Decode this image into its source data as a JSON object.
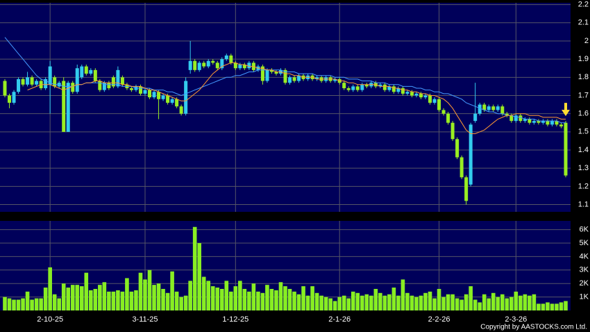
{
  "chart_data": {
    "type": "candlestick",
    "categories": [
      null,
      null,
      null,
      null,
      null,
      null,
      null,
      null,
      null,
      null,
      "2-10-25",
      null,
      null,
      null,
      null,
      null,
      null,
      null,
      null,
      null,
      null,
      null,
      null,
      null,
      null,
      null,
      null,
      null,
      null,
      null,
      null,
      "3-11-25",
      null,
      null,
      null,
      null,
      null,
      null,
      null,
      null,
      null,
      null,
      null,
      null,
      null,
      null,
      null,
      null,
      null,
      null,
      null,
      "1-12-25",
      null,
      null,
      null,
      null,
      null,
      null,
      null,
      null,
      null,
      null,
      null,
      null,
      null,
      null,
      null,
      null,
      null,
      null,
      null,
      null,
      null,
      null,
      "2-1-26",
      null,
      null,
      null,
      null,
      null,
      null,
      null,
      null,
      null,
      null,
      null,
      null,
      null,
      null,
      null,
      null,
      null,
      null,
      null,
      null,
      null,
      "2-2-26",
      null,
      null,
      null,
      null,
      null,
      null,
      null,
      null,
      null,
      null,
      null,
      null,
      null,
      null,
      null,
      null,
      "2-3-26",
      null,
      null,
      null,
      null,
      null,
      null,
      null,
      null,
      null,
      null,
      null
    ],
    "open": [
      1.78,
      1.7,
      1.66,
      1.72,
      1.79,
      1.76,
      1.8,
      1.76,
      1.78,
      1.74,
      1.76,
      1.8,
      1.75,
      1.78,
      1.5,
      1.77,
      1.72,
      1.8,
      1.86,
      1.82,
      1.84,
      1.78,
      1.73,
      1.77,
      1.8,
      1.75,
      1.8,
      1.76,
      1.74,
      1.73,
      1.75,
      1.71,
      1.73,
      1.69,
      1.72,
      1.68,
      1.7,
      1.66,
      1.68,
      1.64,
      1.6,
      1.84,
      1.89,
      1.84,
      1.88,
      1.86,
      1.89,
      1.88,
      1.85,
      1.9,
      1.92,
      1.88,
      1.85,
      1.87,
      1.85,
      1.88,
      1.84,
      1.86,
      1.78,
      1.84,
      1.83,
      1.82,
      1.84,
      1.77,
      1.8,
      1.78,
      1.81,
      1.79,
      1.81,
      1.79,
      1.8,
      1.78,
      1.8,
      1.78,
      1.79,
      1.77,
      1.74,
      1.73,
      1.75,
      1.73,
      1.76,
      1.75,
      1.77,
      1.75,
      1.76,
      1.73,
      1.75,
      1.72,
      1.74,
      1.71,
      1.72,
      1.7,
      1.71,
      1.69,
      1.7,
      1.66,
      1.68,
      1.62,
      1.6,
      1.55,
      1.46,
      1.36,
      1.25,
      1.21,
      1.56,
      1.6,
      1.65,
      1.62,
      1.64,
      1.62,
      1.64,
      1.6,
      1.59,
      1.56,
      1.59,
      1.56,
      1.57,
      1.55,
      1.56,
      1.55,
      1.56,
      1.54,
      1.56,
      1.54,
      1.55
    ],
    "high": [
      1.79,
      1.71,
      1.73,
      1.8,
      1.8,
      1.83,
      1.81,
      1.79,
      1.79,
      1.8,
      1.89,
      1.81,
      1.78,
      1.8,
      1.78,
      1.78,
      1.87,
      1.87,
      1.87,
      1.85,
      1.85,
      1.79,
      1.78,
      1.78,
      1.81,
      1.86,
      1.81,
      1.77,
      1.75,
      1.76,
      1.76,
      1.74,
      1.74,
      1.73,
      1.73,
      1.71,
      1.71,
      1.69,
      1.69,
      1.65,
      1.8,
      2.0,
      1.9,
      1.89,
      1.89,
      1.9,
      1.9,
      1.89,
      1.91,
      1.93,
      1.93,
      1.89,
      1.88,
      1.88,
      1.89,
      1.89,
      1.87,
      1.87,
      1.85,
      1.85,
      1.84,
      1.85,
      1.85,
      1.81,
      1.81,
      1.82,
      1.82,
      1.82,
      1.82,
      1.81,
      1.81,
      1.81,
      1.81,
      1.8,
      1.8,
      1.78,
      1.75,
      1.76,
      1.76,
      1.77,
      1.77,
      1.78,
      1.78,
      1.77,
      1.77,
      1.76,
      1.76,
      1.75,
      1.75,
      1.73,
      1.73,
      1.72,
      1.72,
      1.71,
      1.71,
      1.69,
      1.69,
      1.63,
      1.61,
      1.56,
      1.47,
      1.37,
      1.26,
      1.55,
      1.77,
      1.66,
      1.66,
      1.65,
      1.65,
      1.65,
      1.65,
      1.61,
      1.6,
      1.6,
      1.6,
      1.58,
      1.58,
      1.57,
      1.57,
      1.57,
      1.57,
      1.57,
      1.57,
      1.55,
      1.56
    ],
    "low": [
      1.69,
      1.63,
      1.65,
      1.71,
      1.75,
      1.75,
      1.75,
      1.75,
      1.73,
      1.73,
      1.6,
      1.74,
      1.74,
      1.5,
      1.5,
      1.71,
      1.71,
      1.79,
      1.81,
      1.81,
      1.77,
      1.72,
      1.72,
      1.73,
      1.74,
      1.74,
      1.75,
      1.73,
      1.72,
      1.72,
      1.7,
      1.7,
      1.68,
      1.68,
      1.57,
      1.67,
      1.65,
      1.65,
      1.63,
      1.59,
      1.59,
      1.82,
      1.83,
      1.83,
      1.85,
      1.85,
      1.87,
      1.84,
      1.84,
      1.89,
      1.87,
      1.84,
      1.84,
      1.84,
      1.84,
      1.83,
      1.83,
      1.76,
      1.77,
      1.82,
      1.81,
      1.81,
      1.76,
      1.76,
      1.77,
      1.77,
      1.78,
      1.78,
      1.78,
      1.78,
      1.77,
      1.77,
      1.77,
      1.77,
      1.76,
      1.73,
      1.72,
      1.72,
      1.72,
      1.72,
      1.74,
      1.74,
      1.74,
      1.74,
      1.72,
      1.72,
      1.71,
      1.71,
      1.7,
      1.7,
      1.69,
      1.69,
      1.68,
      1.68,
      1.65,
      1.65,
      1.61,
      1.59,
      1.54,
      1.45,
      1.35,
      1.24,
      1.1,
      1.2,
      1.55,
      1.59,
      1.61,
      1.61,
      1.61,
      1.61,
      1.59,
      1.58,
      1.55,
      1.55,
      1.55,
      1.55,
      1.54,
      1.54,
      1.54,
      1.54,
      1.53,
      1.53,
      1.53,
      1.52,
      1.25
    ],
    "close": [
      1.7,
      1.66,
      1.72,
      1.79,
      1.76,
      1.8,
      1.76,
      1.78,
      1.74,
      1.79,
      1.86,
      1.75,
      1.77,
      1.5,
      1.77,
      1.72,
      1.85,
      1.86,
      1.82,
      1.84,
      1.78,
      1.73,
      1.77,
      1.74,
      1.75,
      1.84,
      1.76,
      1.74,
      1.73,
      1.75,
      1.71,
      1.73,
      1.69,
      1.72,
      1.68,
      1.7,
      1.66,
      1.68,
      1.64,
      1.6,
      1.78,
      1.89,
      1.84,
      1.88,
      1.86,
      1.89,
      1.88,
      1.85,
      1.9,
      1.92,
      1.88,
      1.85,
      1.87,
      1.85,
      1.88,
      1.84,
      1.86,
      1.78,
      1.84,
      1.83,
      1.82,
      1.84,
      1.77,
      1.8,
      1.78,
      1.81,
      1.79,
      1.81,
      1.79,
      1.8,
      1.78,
      1.8,
      1.78,
      1.79,
      1.77,
      1.74,
      1.73,
      1.75,
      1.73,
      1.76,
      1.75,
      1.77,
      1.75,
      1.76,
      1.73,
      1.75,
      1.72,
      1.74,
      1.71,
      1.72,
      1.7,
      1.71,
      1.69,
      1.7,
      1.66,
      1.68,
      1.62,
      1.6,
      1.55,
      1.46,
      1.36,
      1.25,
      1.12,
      1.54,
      1.6,
      1.65,
      1.62,
      1.64,
      1.62,
      1.64,
      1.6,
      1.59,
      1.56,
      1.59,
      1.56,
      1.57,
      1.55,
      1.56,
      1.55,
      1.56,
      1.54,
      1.56,
      1.54,
      1.53,
      1.26
    ],
    "up_color": "#33ccee",
    "down_color": "#99ee22",
    "series": [
      {
        "color": "#4499ff",
        "values": [
          2.02,
          1.99,
          1.96,
          1.93,
          1.9,
          1.87,
          1.84,
          1.81,
          1.79,
          1.78,
          1.77,
          1.76,
          1.76,
          1.75,
          1.75,
          1.75,
          1.76,
          1.76,
          1.77,
          1.77,
          1.77,
          1.77,
          1.76,
          1.76,
          1.76,
          1.76,
          1.75,
          1.75,
          1.75,
          1.74,
          1.74,
          1.74,
          1.74,
          1.73,
          1.73,
          1.73,
          1.72,
          1.72,
          1.71,
          1.7,
          1.71,
          1.72,
          1.73,
          1.74,
          1.75,
          1.76,
          1.77,
          1.78,
          1.79,
          1.8,
          1.8,
          1.81,
          1.81,
          1.82,
          1.83,
          1.83,
          1.84,
          1.84,
          1.84,
          1.84,
          1.84,
          1.84,
          1.83,
          1.83,
          1.83,
          1.82,
          1.82,
          1.82,
          1.82,
          1.81,
          1.81,
          1.81,
          1.81,
          1.8,
          1.8,
          1.8,
          1.79,
          1.79,
          1.79,
          1.78,
          1.78,
          1.78,
          1.77,
          1.77,
          1.77,
          1.76,
          1.76,
          1.76,
          1.75,
          1.75,
          1.75,
          1.74,
          1.74,
          1.73,
          1.73,
          1.72,
          1.72,
          1.71,
          1.71,
          1.7,
          1.69,
          1.68,
          1.66,
          1.65,
          1.64,
          1.63,
          1.62,
          1.61,
          1.61,
          1.6,
          1.6,
          1.59,
          1.59,
          1.58,
          1.58,
          1.57,
          1.57,
          1.57,
          1.56,
          1.56,
          1.56,
          1.56,
          1.56,
          1.55,
          1.55
        ]
      },
      {
        "color": "#ff9933",
        "values": [
          null,
          null,
          null,
          null,
          null,
          1.73,
          1.74,
          1.75,
          1.76,
          1.76,
          1.76,
          1.75,
          1.74,
          1.73,
          1.74,
          1.75,
          1.76,
          1.76,
          1.77,
          1.77,
          1.78,
          1.78,
          1.77,
          1.77,
          1.77,
          1.77,
          1.76,
          1.76,
          1.75,
          1.75,
          1.75,
          1.74,
          1.73,
          1.73,
          1.72,
          1.71,
          1.7,
          1.69,
          1.68,
          1.67,
          1.67,
          1.69,
          1.71,
          1.73,
          1.76,
          1.79,
          1.82,
          1.84,
          1.86,
          1.87,
          1.88,
          1.88,
          1.87,
          1.87,
          1.86,
          1.86,
          1.85,
          1.85,
          1.84,
          1.84,
          1.83,
          1.83,
          1.82,
          1.82,
          1.81,
          1.81,
          1.8,
          1.8,
          1.8,
          1.79,
          1.79,
          1.79,
          1.79,
          1.79,
          1.78,
          1.78,
          1.77,
          1.77,
          1.76,
          1.76,
          1.76,
          1.76,
          1.76,
          1.75,
          1.75,
          1.75,
          1.74,
          1.74,
          1.73,
          1.73,
          1.72,
          1.72,
          1.71,
          1.71,
          1.7,
          1.7,
          1.69,
          1.68,
          1.66,
          1.63,
          1.59,
          1.55,
          1.51,
          1.49,
          1.49,
          1.5,
          1.51,
          1.53,
          1.55,
          1.57,
          1.58,
          1.59,
          1.59,
          1.6,
          1.6,
          1.6,
          1.59,
          1.59,
          1.59,
          1.58,
          1.58,
          1.58,
          1.58,
          1.57,
          1.57
        ]
      }
    ],
    "ylim": [
      1.06,
      2.21
    ],
    "yticks": [
      1.1,
      1.2,
      1.3,
      1.4,
      1.5,
      1.6,
      1.7,
      1.8,
      1.9,
      2,
      2.1,
      2.2
    ],
    "grid": true,
    "volume": {
      "type": "bar",
      "color": "#88ee22",
      "values": [
        1.0,
        0.9,
        0.8,
        0.8,
        0.9,
        1.4,
        0.8,
        0.9,
        0.9,
        1.7,
        3.2,
        1.2,
        0.9,
        2.0,
        1.7,
        1.9,
        1.9,
        1.8,
        2.8,
        1.5,
        1.6,
        1.9,
        2.1,
        1.4,
        1.4,
        1.5,
        1.4,
        2.4,
        1.4,
        1.5,
        2.8,
        2.3,
        3.0,
        1.9,
        2.0,
        1.6,
        1.3,
        2.9,
        1.4,
        1.0,
        1.1,
        2.2,
        6.2,
        5.0,
        2.5,
        2.2,
        1.8,
        1.7,
        1.6,
        2.2,
        1.4,
        1.8,
        2.2,
        1.6,
        1.4,
        2.0,
        1.4,
        1.3,
        1.9,
        1.6,
        1.5,
        2.1,
        1.8,
        1.6,
        1.4,
        1.2,
        1.8,
        1.1,
        1.8,
        1.3,
        1.1,
        1.0,
        0.9,
        0.7,
        1.0,
        1.1,
        0.9,
        1.4,
        1.3,
        1.1,
        1.2,
        1.1,
        1.6,
        1.3,
        1.1,
        1.2,
        1.7,
        1.1,
        2.3,
        1.3,
        1.1,
        1.0,
        1.1,
        1.3,
        1.4,
        0.9,
        1.6,
        1.0,
        1.2,
        1.2,
        0.9,
        0.8,
        1.2,
        1.8,
        0.8,
        0.6,
        1.2,
        0.9,
        1.3,
        1.0,
        1.2,
        0.9,
        1.0,
        1.4,
        1.1,
        1.2,
        1.1,
        1.2,
        0.5,
        0.5,
        0.6,
        0.5,
        0.5,
        0.6,
        0.7
      ],
      "ylim": [
        0,
        6.65
      ],
      "yticks": [
        {
          "value": 1,
          "label": "1K"
        },
        {
          "value": 2,
          "label": "2K"
        },
        {
          "value": 3,
          "label": "3K"
        },
        {
          "value": 4,
          "label": "4K"
        },
        {
          "value": 5,
          "label": "5K"
        },
        {
          "value": 6,
          "label": "6K"
        }
      ]
    },
    "copyright": "Copyright by AASTOCKS.com Ltd."
  }
}
